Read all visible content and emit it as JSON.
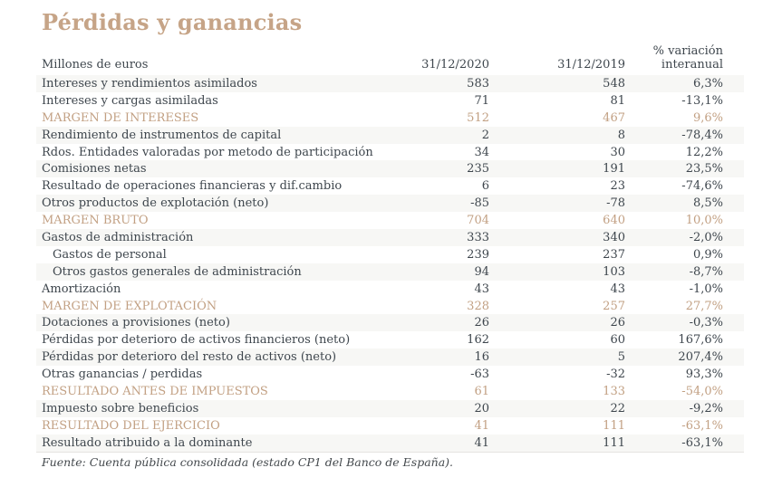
{
  "page": {
    "title": "Pérdidas y ganancias",
    "subtitle": "Millones de euros",
    "source_note": "Fuente: Cuenta pública consolidada (estado CP1 del Banco de España)."
  },
  "colors": {
    "accent_title": "#c6a487",
    "accent_highlight_text": "#c2a083",
    "body_text": "#3e464d",
    "row_stripe": "#f7f7f5"
  },
  "table": {
    "columns": {
      "c2020": "31/12/2020",
      "c2019": "31/12/2019",
      "variation_line1": "% variación",
      "variation_line2": "interanual"
    },
    "rows": [
      {
        "label": "Intereses y rendimientos asimilados",
        "v2020": "583",
        "v2019": "548",
        "variation": "6,3%",
        "highlight": false,
        "indent": false,
        "shaded": true
      },
      {
        "label": "Intereses y cargas asimiladas",
        "v2020": "71",
        "v2019": "81",
        "variation": "-13,1%",
        "highlight": false,
        "indent": false,
        "shaded": false
      },
      {
        "label": "MARGEN DE INTERESES",
        "v2020": "512",
        "v2019": "467",
        "variation": "9,6%",
        "highlight": true,
        "indent": false,
        "shaded": false
      },
      {
        "label": "Rendimiento de instrumentos de capital",
        "v2020": "2",
        "v2019": "8",
        "variation": "-78,4%",
        "highlight": false,
        "indent": false,
        "shaded": true
      },
      {
        "label": "Rdos. Entidades valoradas por metodo de participación",
        "v2020": "34",
        "v2019": "30",
        "variation": "12,2%",
        "highlight": false,
        "indent": false,
        "shaded": false
      },
      {
        "label": "Comisiones netas",
        "v2020": "235",
        "v2019": "191",
        "variation": "23,5%",
        "highlight": false,
        "indent": false,
        "shaded": true
      },
      {
        "label": "Resultado de operaciones financieras y dif.cambio",
        "v2020": "6",
        "v2019": "23",
        "variation": "-74,6%",
        "highlight": false,
        "indent": false,
        "shaded": false
      },
      {
        "label": "Otros productos de explotación (neto)",
        "v2020": "-85",
        "v2019": "-78",
        "variation": "8,5%",
        "highlight": false,
        "indent": false,
        "shaded": true
      },
      {
        "label": "MARGEN BRUTO",
        "v2020": "704",
        "v2019": "640",
        "variation": "10,0%",
        "highlight": true,
        "indent": false,
        "shaded": false
      },
      {
        "label": "Gastos de administración",
        "v2020": "333",
        "v2019": "340",
        "variation": "-2,0%",
        "highlight": false,
        "indent": false,
        "shaded": true
      },
      {
        "label": "Gastos de personal",
        "v2020": "239",
        "v2019": "237",
        "variation": "0,9%",
        "highlight": false,
        "indent": true,
        "shaded": false
      },
      {
        "label": "Otros gastos generales de administración",
        "v2020": "94",
        "v2019": "103",
        "variation": "-8,7%",
        "highlight": false,
        "indent": true,
        "shaded": true
      },
      {
        "label": "Amortización",
        "v2020": "43",
        "v2019": "43",
        "variation": "-1,0%",
        "highlight": false,
        "indent": false,
        "shaded": false
      },
      {
        "label": "MARGEN DE EXPLOTACIÓN",
        "v2020": "328",
        "v2019": "257",
        "variation": "27,7%",
        "highlight": true,
        "indent": false,
        "shaded": false
      },
      {
        "label": "Dotaciones a provisiones (neto)",
        "v2020": "26",
        "v2019": "26",
        "variation": "-0,3%",
        "highlight": false,
        "indent": false,
        "shaded": true
      },
      {
        "label": "Pérdidas por deterioro de activos financieros (neto)",
        "v2020": "162",
        "v2019": "60",
        "variation": "167,6%",
        "highlight": false,
        "indent": false,
        "shaded": false
      },
      {
        "label": "Pérdidas por deterioro del resto de activos (neto)",
        "v2020": "16",
        "v2019": "5",
        "variation": "207,4%",
        "highlight": false,
        "indent": false,
        "shaded": true
      },
      {
        "label": "Otras ganancias / perdidas",
        "v2020": "-63",
        "v2019": "-32",
        "variation": "93,3%",
        "highlight": false,
        "indent": false,
        "shaded": false
      },
      {
        "label": "RESULTADO ANTES DE IMPUESTOS",
        "v2020": "61",
        "v2019": "133",
        "variation": "-54,0%",
        "highlight": true,
        "indent": false,
        "shaded": false
      },
      {
        "label": "Impuesto sobre beneficios",
        "v2020": "20",
        "v2019": "22",
        "variation": "-9,2%",
        "highlight": false,
        "indent": false,
        "shaded": true
      },
      {
        "label": "RESULTADO DEL EJERCICIO",
        "v2020": "41",
        "v2019": "111",
        "variation": "-63,1%",
        "highlight": true,
        "indent": false,
        "shaded": false
      },
      {
        "label": "Resultado atribuido a la dominante",
        "v2020": "41",
        "v2019": "111",
        "variation": "-63,1%",
        "highlight": false,
        "indent": false,
        "shaded": true
      }
    ]
  }
}
